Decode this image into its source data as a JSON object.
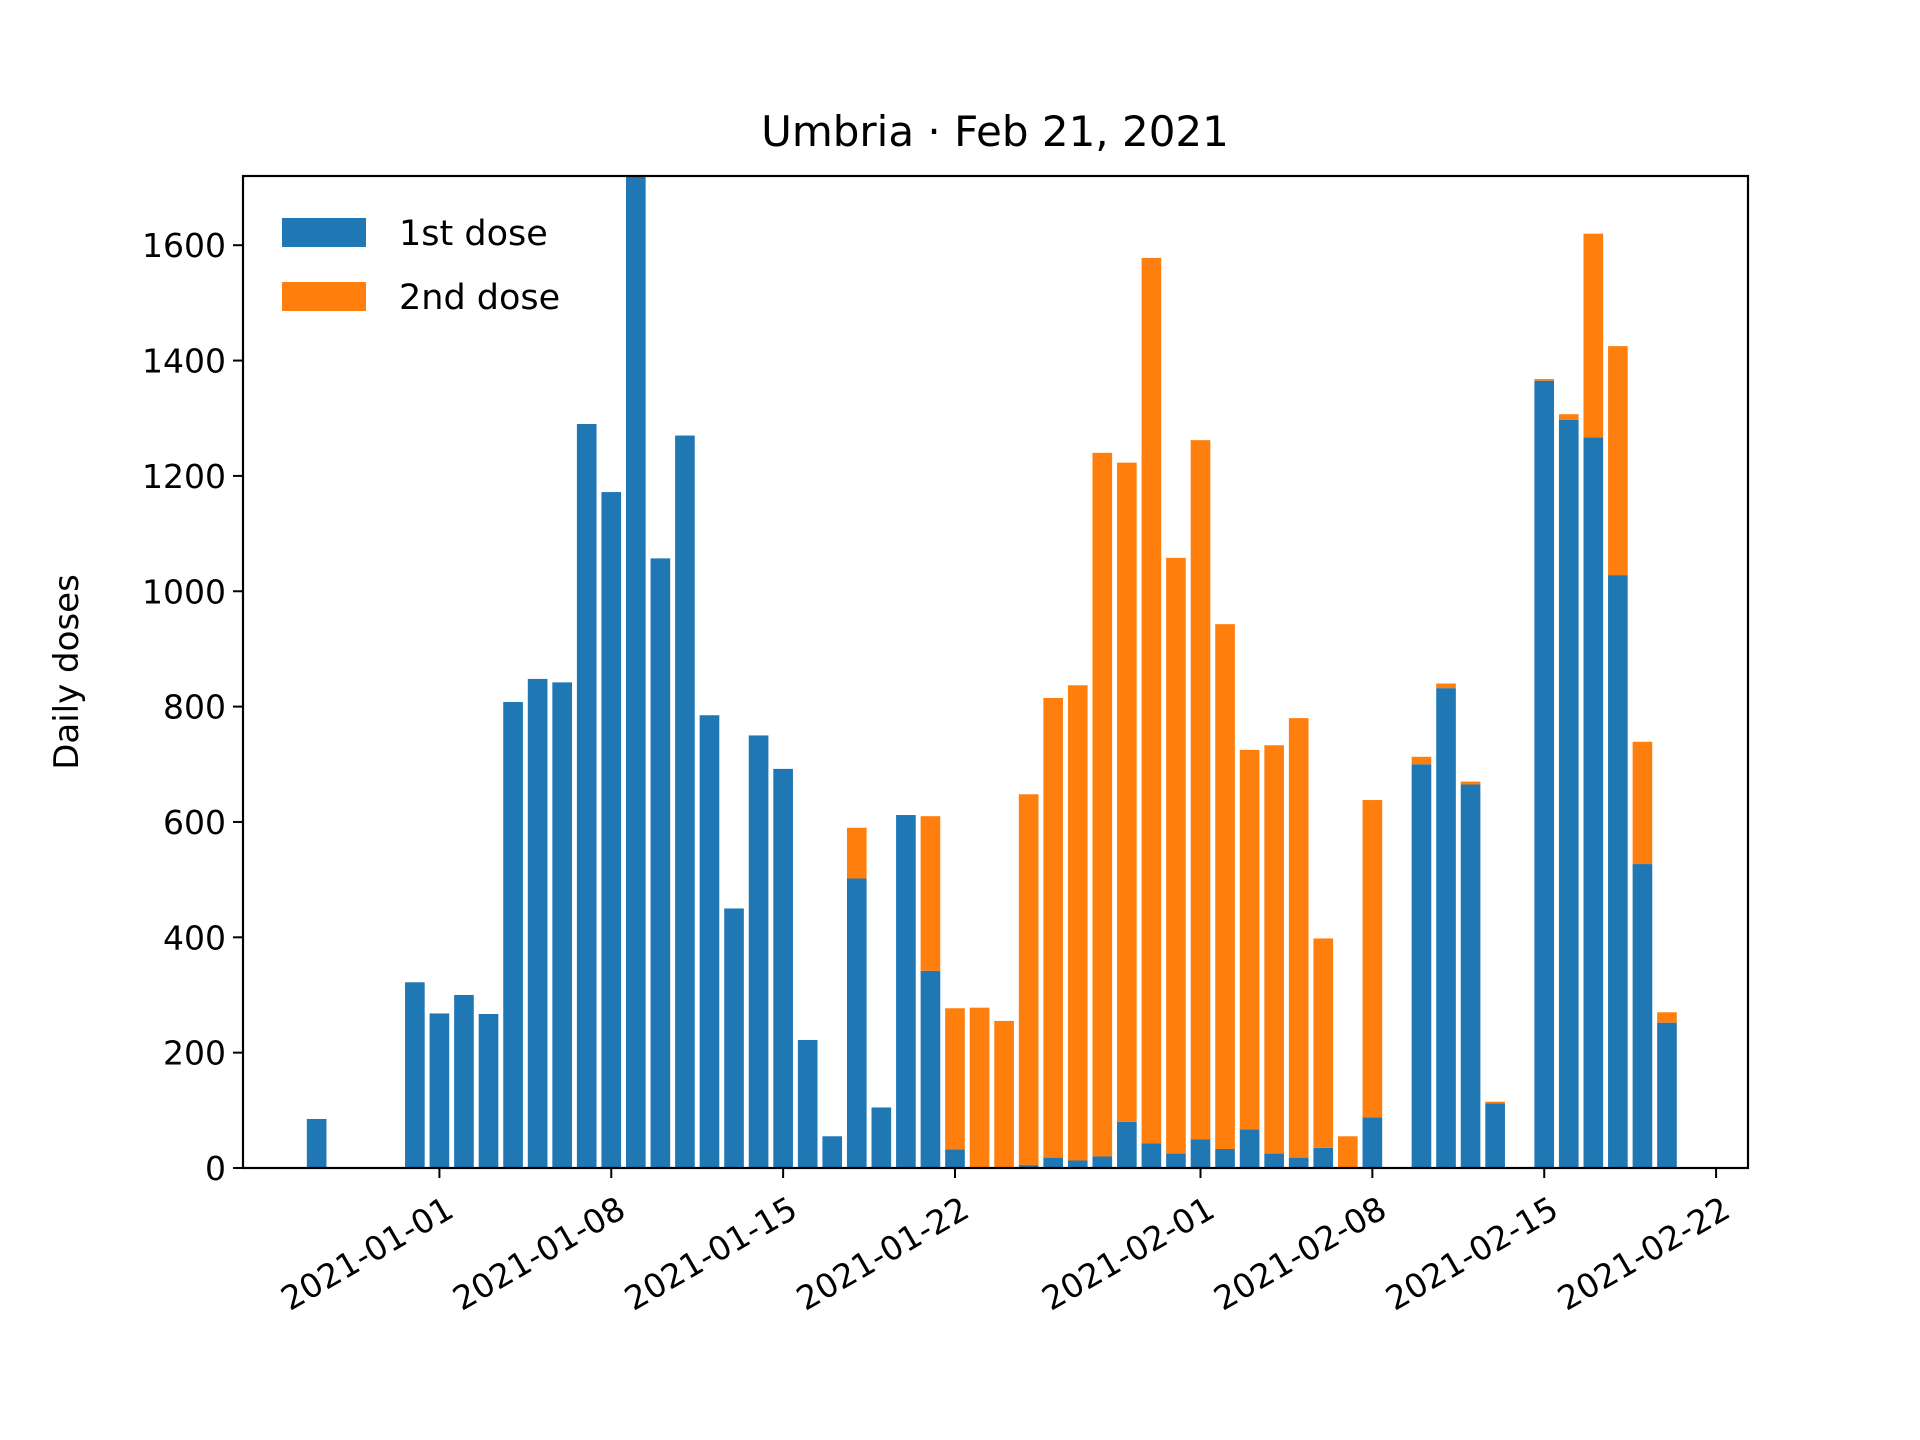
{
  "chart_data": {
    "type": "bar",
    "stacked": true,
    "title": "Umbria · Feb 21, 2021",
    "xlabel": "",
    "ylabel": "Daily doses",
    "ylim": [
      0,
      1720
    ],
    "y_ticks": [
      0,
      200,
      400,
      600,
      800,
      1000,
      1200,
      1400,
      1600
    ],
    "x_ticks": [
      {
        "label": "2021-01-01",
        "day": 5
      },
      {
        "label": "2021-01-08",
        "day": 12
      },
      {
        "label": "2021-01-15",
        "day": 19
      },
      {
        "label": "2021-01-22",
        "day": 26
      },
      {
        "label": "2021-02-01",
        "day": 36
      },
      {
        "label": "2021-02-08",
        "day": 43
      },
      {
        "label": "2021-02-15",
        "day": 50
      },
      {
        "label": "2021-02-22",
        "day": 57
      }
    ],
    "x_range_days": [
      -3,
      58.3
    ],
    "categories": [
      "2020-12-27",
      "2020-12-28",
      "2020-12-29",
      "2020-12-30",
      "2020-12-31",
      "2021-01-01",
      "2021-01-02",
      "2021-01-03",
      "2021-01-04",
      "2021-01-05",
      "2021-01-06",
      "2021-01-07",
      "2021-01-08",
      "2021-01-09",
      "2021-01-10",
      "2021-01-11",
      "2021-01-12",
      "2021-01-13",
      "2021-01-14",
      "2021-01-15",
      "2021-01-16",
      "2021-01-17",
      "2021-01-18",
      "2021-01-19",
      "2021-01-20",
      "2021-01-21",
      "2021-01-22",
      "2021-01-23",
      "2021-01-24",
      "2021-01-25",
      "2021-01-26",
      "2021-01-27",
      "2021-01-28",
      "2021-01-29",
      "2021-01-30",
      "2021-01-31",
      "2021-02-01",
      "2021-02-02",
      "2021-02-03",
      "2021-02-04",
      "2021-02-05",
      "2021-02-06",
      "2021-02-07",
      "2021-02-08",
      "2021-02-09",
      "2021-02-10",
      "2021-02-11",
      "2021-02-12",
      "2021-02-13",
      "2021-02-14",
      "2021-02-15",
      "2021-02-16",
      "2021-02-17",
      "2021-02-18",
      "2021-02-19",
      "2021-02-20"
    ],
    "series": [
      {
        "name": "1st dose",
        "color": "#1f77b4",
        "values": [
          85,
          0,
          0,
          0,
          322,
          268,
          300,
          267,
          808,
          848,
          842,
          1290,
          1172,
          1720,
          1057,
          1270,
          785,
          450,
          750,
          692,
          222,
          55,
          502,
          105,
          612,
          342,
          32,
          0,
          0,
          5,
          18,
          13,
          20,
          80,
          43,
          25,
          50,
          33,
          67,
          25,
          18,
          35,
          0,
          88,
          0,
          700,
          832,
          665,
          112,
          0,
          1365,
          1297,
          1267,
          1028,
          527,
          252
        ]
      },
      {
        "name": "2nd dose",
        "color": "#ff7f0e",
        "values": [
          0,
          0,
          0,
          0,
          0,
          0,
          0,
          0,
          0,
          0,
          0,
          0,
          0,
          0,
          0,
          0,
          0,
          0,
          0,
          0,
          0,
          0,
          88,
          0,
          0,
          268,
          245,
          278,
          255,
          643,
          797,
          824,
          1220,
          1143,
          1535,
          1033,
          1212,
          910,
          658,
          708,
          762,
          363,
          55,
          550,
          0,
          13,
          8,
          5,
          3,
          0,
          3,
          10,
          353,
          397,
          212,
          18
        ]
      }
    ],
    "legend_position": "upper-left"
  }
}
